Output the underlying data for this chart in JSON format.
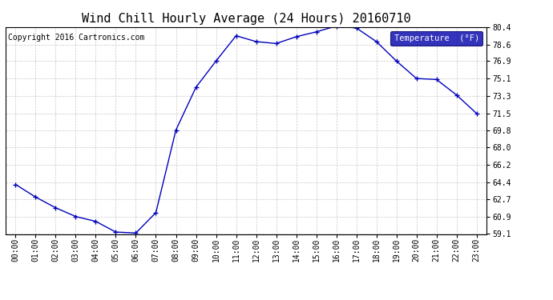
{
  "title": "Wind Chill Hourly Average (24 Hours) 20160710",
  "copyright_text": "Copyright 2016 Cartronics.com",
  "legend_label": "Temperature  (°F)",
  "hours": [
    0,
    1,
    2,
    3,
    4,
    5,
    6,
    7,
    8,
    9,
    10,
    11,
    12,
    13,
    14,
    15,
    16,
    17,
    18,
    19,
    20,
    21,
    22,
    23
  ],
  "x_labels": [
    "00:00",
    "01:00",
    "02:00",
    "03:00",
    "04:00",
    "05:00",
    "06:00",
    "07:00",
    "08:00",
    "09:00",
    "10:00",
    "11:00",
    "12:00",
    "13:00",
    "14:00",
    "15:00",
    "16:00",
    "17:00",
    "18:00",
    "19:00",
    "20:00",
    "21:00",
    "22:00",
    "23:00"
  ],
  "values": [
    64.2,
    62.9,
    61.8,
    60.9,
    60.4,
    59.3,
    59.2,
    61.3,
    69.8,
    74.2,
    76.9,
    79.5,
    78.9,
    78.7,
    79.4,
    79.9,
    80.5,
    80.3,
    78.9,
    76.9,
    75.1,
    75.0,
    73.4,
    71.5
  ],
  "ylim": [
    59.1,
    80.4
  ],
  "yticks": [
    59.1,
    60.9,
    62.7,
    64.4,
    66.2,
    68.0,
    69.8,
    71.5,
    73.3,
    75.1,
    76.9,
    78.6,
    80.4
  ],
  "line_color": "#0000bb",
  "marker": "+",
  "marker_size": 4,
  "marker_linewidth": 1.0,
  "bg_color": "#ffffff",
  "plot_bg_color": "#ffffff",
  "grid_color": "#bbbbbb",
  "title_fontsize": 11,
  "tick_fontsize": 7,
  "copyright_fontsize": 7,
  "legend_bg": "#0000aa",
  "legend_fg": "#ffffff",
  "legend_fontsize": 7.5,
  "linewidth": 1.0
}
